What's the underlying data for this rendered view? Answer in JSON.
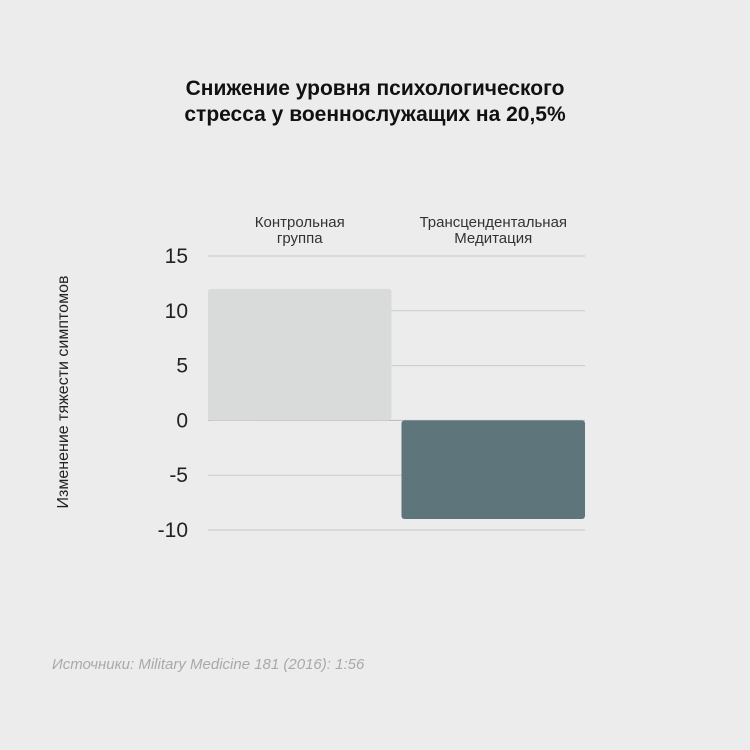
{
  "chart_data": {
    "type": "bar",
    "title_lines": [
      "Снижение уровня психологического",
      "стресса у военнослужащих на 20,5%"
    ],
    "ylabel": "Изменение тяжести симптомов",
    "categories": [
      {
        "lines": [
          "Контрольная",
          "группа"
        ]
      },
      {
        "lines": [
          "Трансцендентальная",
          "Медитация"
        ]
      }
    ],
    "values": [
      12,
      -9
    ],
    "ylim": [
      -10,
      15
    ],
    "yticks": [
      15,
      10,
      5,
      0,
      -5,
      -10
    ],
    "bar_colors": [
      "#d9dbda",
      "#5f757c"
    ],
    "grid": true
  },
  "source": "Источники: Military Medicine 181 (2016): 1:56"
}
